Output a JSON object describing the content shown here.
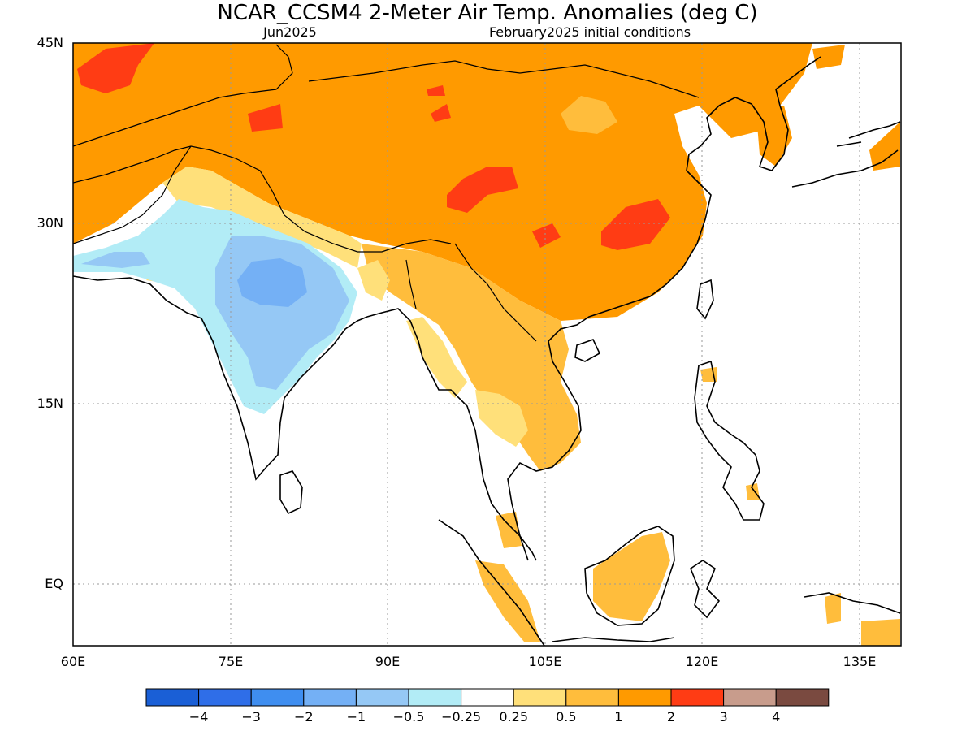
{
  "title": "NCAR_CCSM4 2-Meter Air Temp. Anomalies (deg C)",
  "subtitle_left": "Jun2025",
  "subtitle_right": "February2025 initial conditions",
  "y_tick_labels": [
    "45N",
    "30N",
    "15N",
    "EQ"
  ],
  "x_tick_labels": [
    "60E",
    "75E",
    "90E",
    "105E",
    "120E",
    "135E"
  ],
  "legend": {
    "colors": [
      "#1a5fd6",
      "#2f6ee8",
      "#3f8ef0",
      "#74b0f5",
      "#95c8f5",
      "#b2ecf6",
      "#ffffff",
      "#ffe07a",
      "#ffbd3c",
      "#ff9a00",
      "#ff3c14",
      "#c89c8c",
      "#7a4a40"
    ],
    "labels": [
      "−4",
      "−3",
      "−2",
      "−1",
      "−0.5",
      "−0.25",
      "0.25",
      "0.5",
      "1",
      "2",
      "3",
      "4"
    ]
  },
  "colors": {
    "warm_1": "#ffe07a",
    "warm_2": "#ffbd3c",
    "warm_3": "#ff9a00",
    "warm_4": "#ff3c14",
    "cool_1": "#b2ecf6",
    "cool_2": "#95c8f5",
    "cool_3": "#74b0f5"
  }
}
